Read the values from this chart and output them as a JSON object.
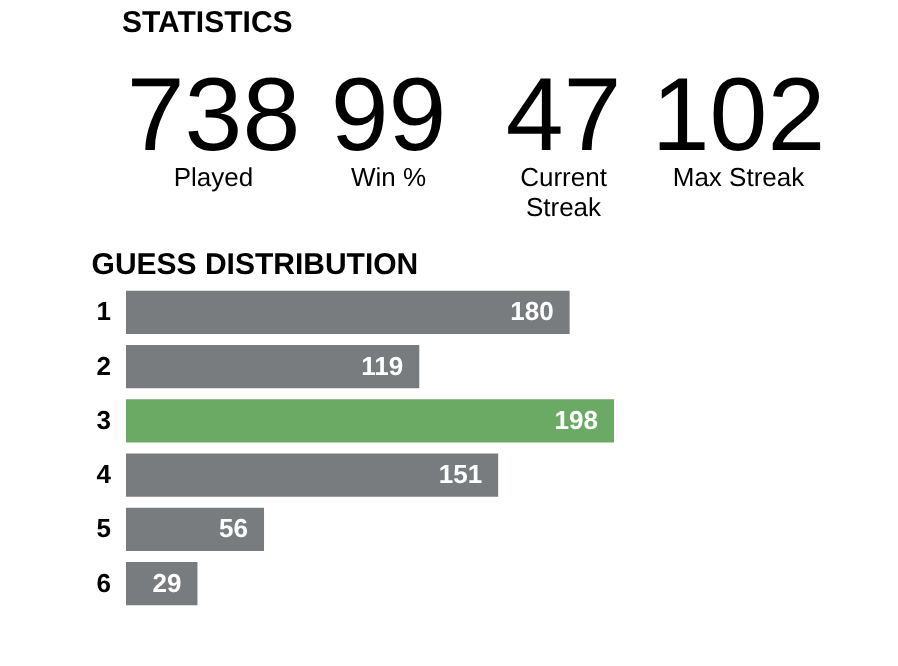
{
  "chart_data": [
    {
      "type": "other",
      "title": "STATISTICS",
      "categories": [
        "Played",
        "Win %",
        "Current\nStreak",
        "Max Streak"
      ],
      "values": [
        738,
        99,
        47,
        102
      ],
      "data_labels": true
    },
    {
      "type": "bar",
      "orientation": "horizontal",
      "title": "GUESS DISTRIBUTION",
      "categories": [
        "1",
        "2",
        "3",
        "4",
        "5",
        "6"
      ],
      "values": [
        180,
        119,
        198,
        151,
        56,
        29
      ],
      "colors": [
        "#787c7e",
        "#787c7e",
        "#6aaa64",
        "#787c7e",
        "#787c7e",
        "#787c7e"
      ],
      "data_labels": true
    }
  ]
}
